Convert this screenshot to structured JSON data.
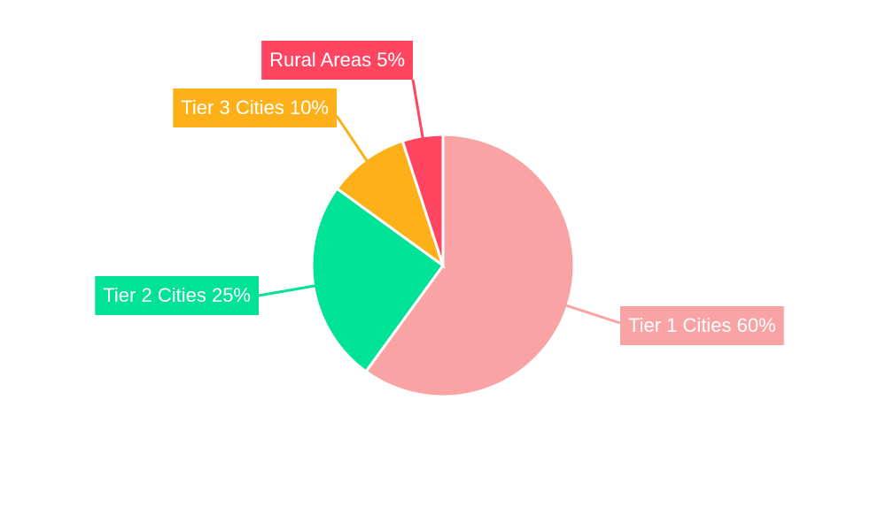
{
  "chart_data": {
    "type": "pie",
    "categories": [
      "Tier 1 Cities",
      "Tier 2 Cities",
      "Tier 3 Cities",
      "Rural Areas"
    ],
    "values": [
      60,
      25,
      10,
      5
    ],
    "value_labels": [
      "60%",
      "25%",
      "10%",
      "5%"
    ],
    "colors": [
      "#f9a3a4",
      "#00e396",
      "#feb019",
      "#ff4560"
    ]
  }
}
